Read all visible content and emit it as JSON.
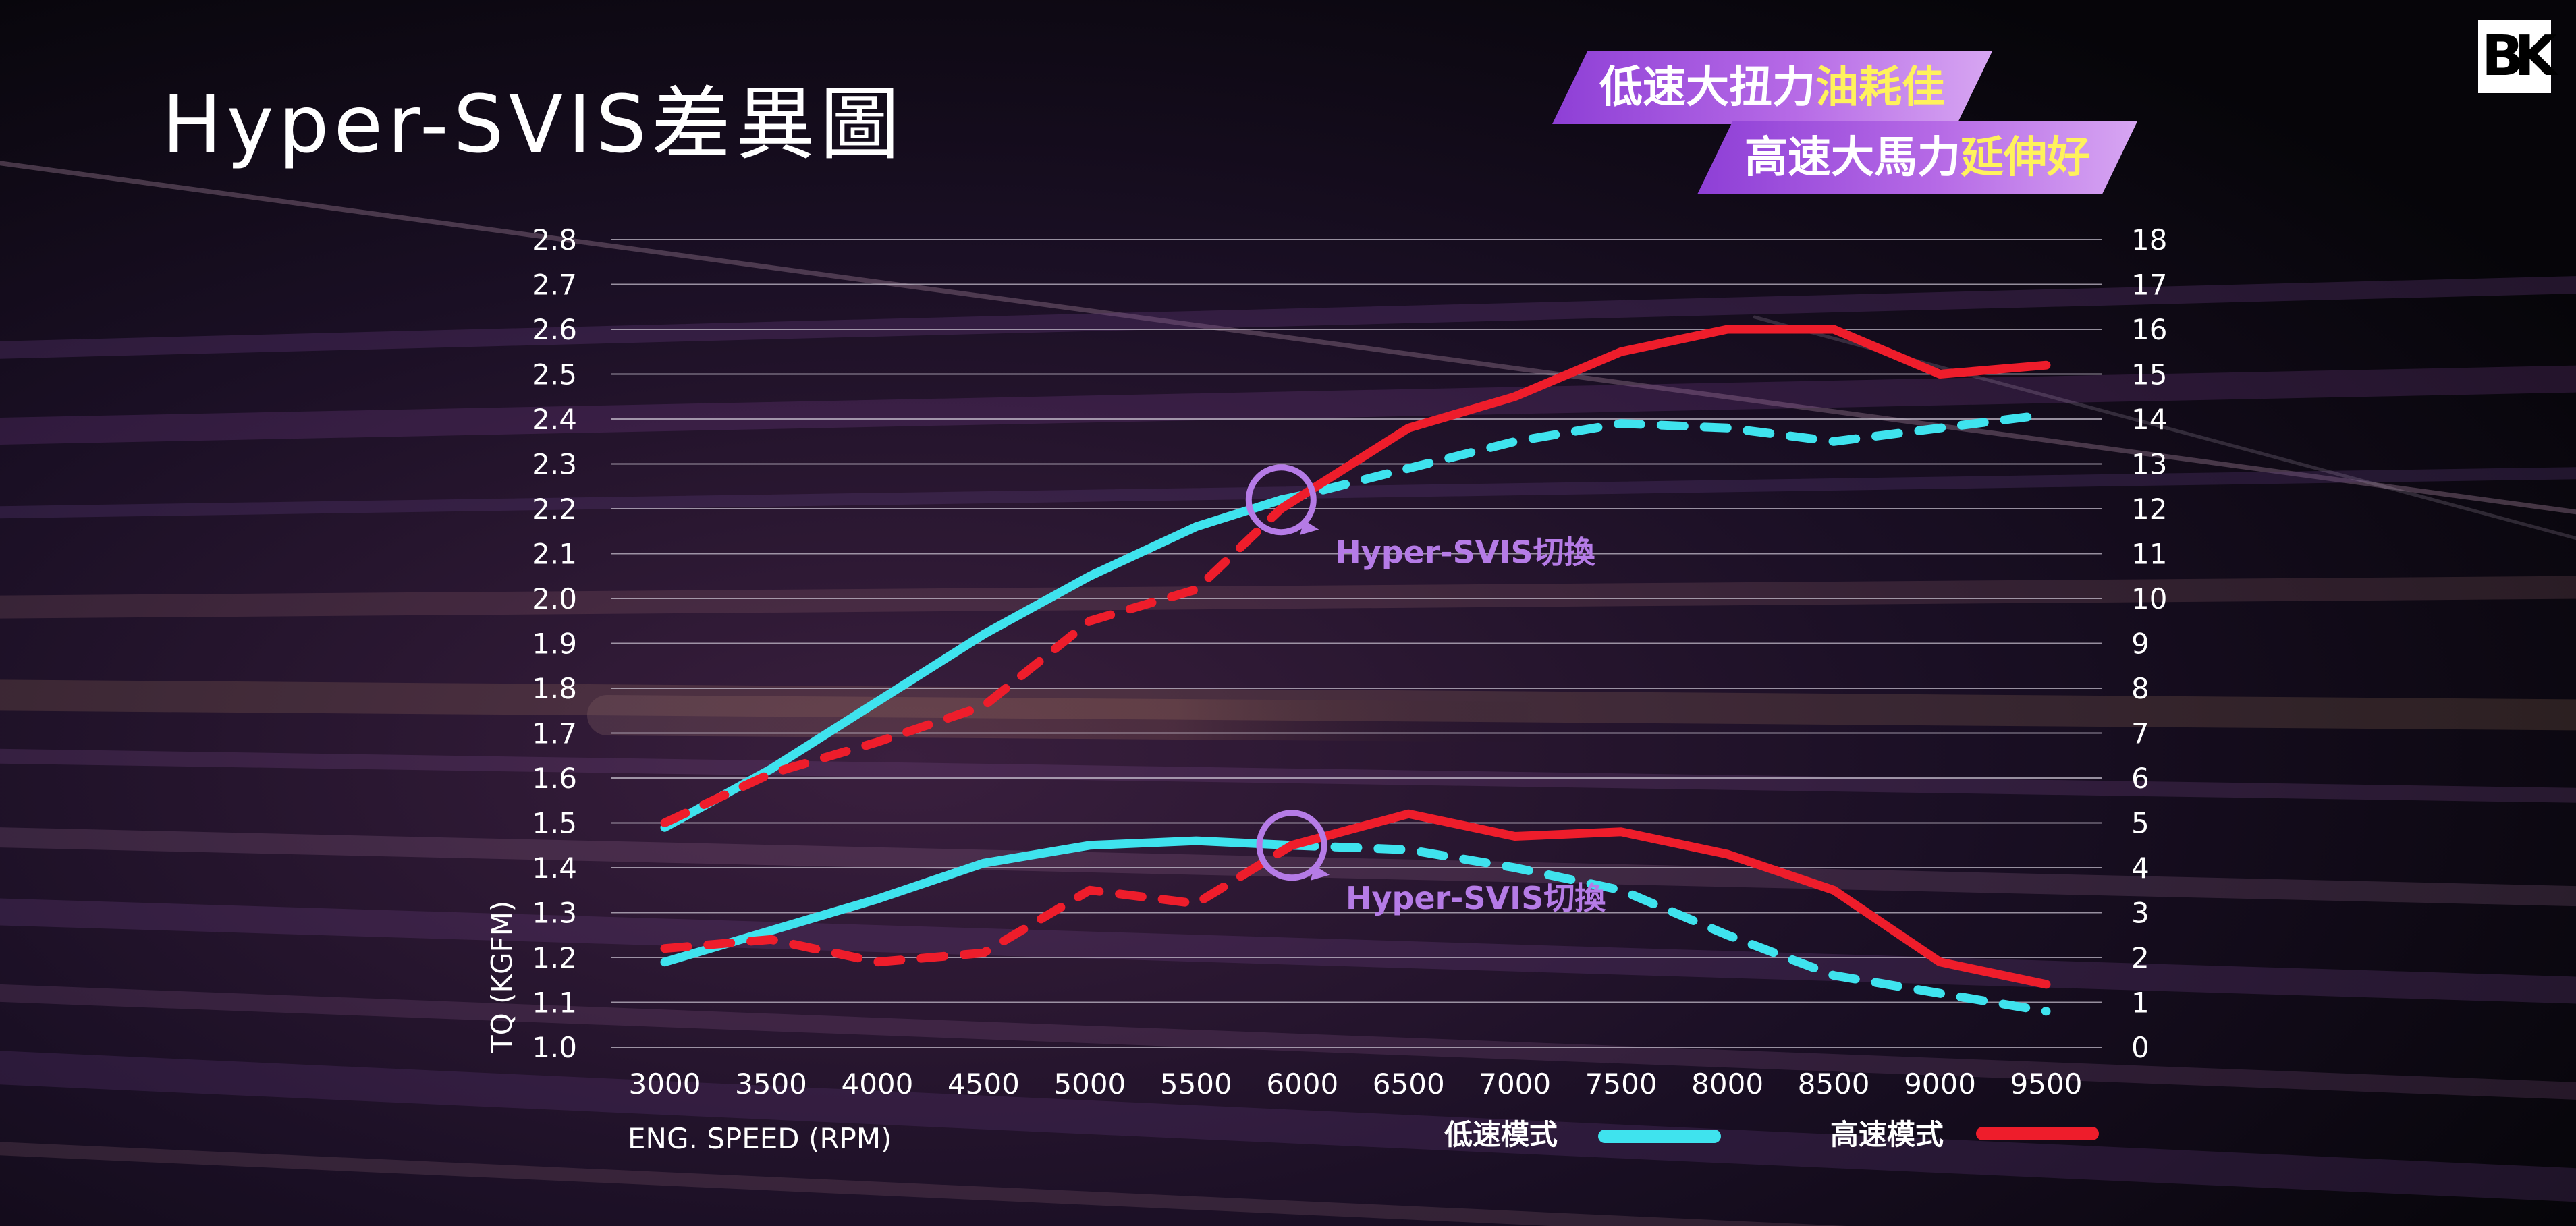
{
  "title": "Hyper-SVIS差異圖",
  "logo_text": "BK",
  "banners": [
    {
      "text": "低速大扭力",
      "highlight": "油耗佳"
    },
    {
      "text": "高速大馬力",
      "highlight": "延伸好"
    }
  ],
  "colors": {
    "low_speed_mode": "#3fe3ee",
    "high_speed_mode": "#ee1d2b",
    "annotation": "#b57be6",
    "highlight_text": "#fff25c",
    "banner": "#a456de"
  },
  "chart_data": {
    "type": "line",
    "xlabel": "ENG. SPEED (RPM)",
    "ylabel": "TQ (KGFM)",
    "x": [
      3000,
      3500,
      4000,
      4500,
      5000,
      5500,
      6000,
      6500,
      7000,
      7500,
      8000,
      8500,
      9000,
      9500
    ],
    "x_ticks": [
      "3000",
      "3500",
      "4000",
      "4500",
      "5000",
      "5500",
      "6000",
      "6500",
      "7000",
      "7500",
      "8000",
      "8500",
      "9000",
      "9500"
    ],
    "y_left_ticks": [
      "2.8",
      "2.7",
      "2.6",
      "2.5",
      "2.4",
      "2.3",
      "2.2",
      "2.1",
      "2.0",
      "1.9",
      "1.8",
      "1.7",
      "1.6",
      "1.5",
      "1.4",
      "1.3",
      "1.2",
      "1.1",
      "1.0"
    ],
    "y_right_ticks": [
      "18",
      "17",
      "16",
      "15",
      "14",
      "13",
      "12",
      "11",
      "10",
      "9",
      "8",
      "7",
      "6",
      "5",
      "4",
      "3",
      "2",
      "1",
      "0"
    ],
    "ylim_left": [
      1.0,
      2.8
    ],
    "ylim_right": [
      0,
      18
    ],
    "grid": "horizontal",
    "legend_position": "bottom-right",
    "legend": [
      {
        "label": "低速模式",
        "series": "low"
      },
      {
        "label": "高速模式",
        "series": "high"
      }
    ],
    "series": [
      {
        "key": "low",
        "metric": "horsepower",
        "axis": "right",
        "segments": [
          {
            "style": "solid",
            "x": [
              3000,
              3500,
              4000,
              4500,
              5000,
              5500,
              5900
            ],
            "y": [
              4.9,
              6.2,
              7.7,
              9.2,
              10.5,
              11.6,
              12.2
            ]
          },
          {
            "style": "dashed",
            "x": [
              5900,
              6000,
              6500,
              7000,
              7500,
              8000,
              8500,
              9000,
              9500
            ],
            "y": [
              12.2,
              12.3,
              12.9,
              13.5,
              13.9,
              13.8,
              13.5,
              13.8,
              14.1
            ]
          }
        ]
      },
      {
        "key": "high",
        "metric": "horsepower",
        "axis": "right",
        "segments": [
          {
            "style": "dashed",
            "x": [
              3000,
              3500,
              4000,
              4500,
              5000,
              5500,
              5900
            ],
            "y": [
              5.0,
              6.1,
              6.8,
              7.6,
              9.5,
              10.2,
              12.0
            ]
          },
          {
            "style": "solid",
            "x": [
              5900,
              6000,
              6500,
              7000,
              7500,
              8000,
              8500,
              9000,
              9500
            ],
            "y": [
              12.0,
              12.3,
              13.8,
              14.5,
              15.5,
              16.0,
              16.0,
              15.0,
              15.2
            ]
          }
        ]
      },
      {
        "key": "low",
        "metric": "torque",
        "axis": "left",
        "segments": [
          {
            "style": "solid",
            "x": [
              3000,
              3500,
              4000,
              4500,
              5000,
              5500,
              5950
            ],
            "y": [
              1.19,
              1.26,
              1.33,
              1.41,
              1.45,
              1.46,
              1.45
            ]
          },
          {
            "style": "dashed",
            "x": [
              5950,
              6500,
              7000,
              7500,
              8000,
              8500,
              9000,
              9500
            ],
            "y": [
              1.45,
              1.44,
              1.4,
              1.35,
              1.25,
              1.16,
              1.12,
              1.08
            ]
          }
        ]
      },
      {
        "key": "high",
        "metric": "torque",
        "axis": "left",
        "segments": [
          {
            "style": "dashed",
            "x": [
              3000,
              3500,
              4000,
              4500,
              5000,
              5500,
              5950
            ],
            "y": [
              1.22,
              1.24,
              1.19,
              1.21,
              1.35,
              1.32,
              1.45
            ]
          },
          {
            "style": "solid",
            "x": [
              5950,
              6500,
              7000,
              7500,
              8000,
              8500,
              9000,
              9500
            ],
            "y": [
              1.45,
              1.52,
              1.47,
              1.48,
              1.43,
              1.35,
              1.19,
              1.14
            ]
          }
        ]
      }
    ],
    "annotations": [
      {
        "text": "Hyper-SVIS切換",
        "x": 5900,
        "y": 12.2,
        "axis": "right"
      },
      {
        "text": "Hyper-SVIS切換",
        "x": 5950,
        "y": 1.45,
        "axis": "left"
      }
    ]
  }
}
